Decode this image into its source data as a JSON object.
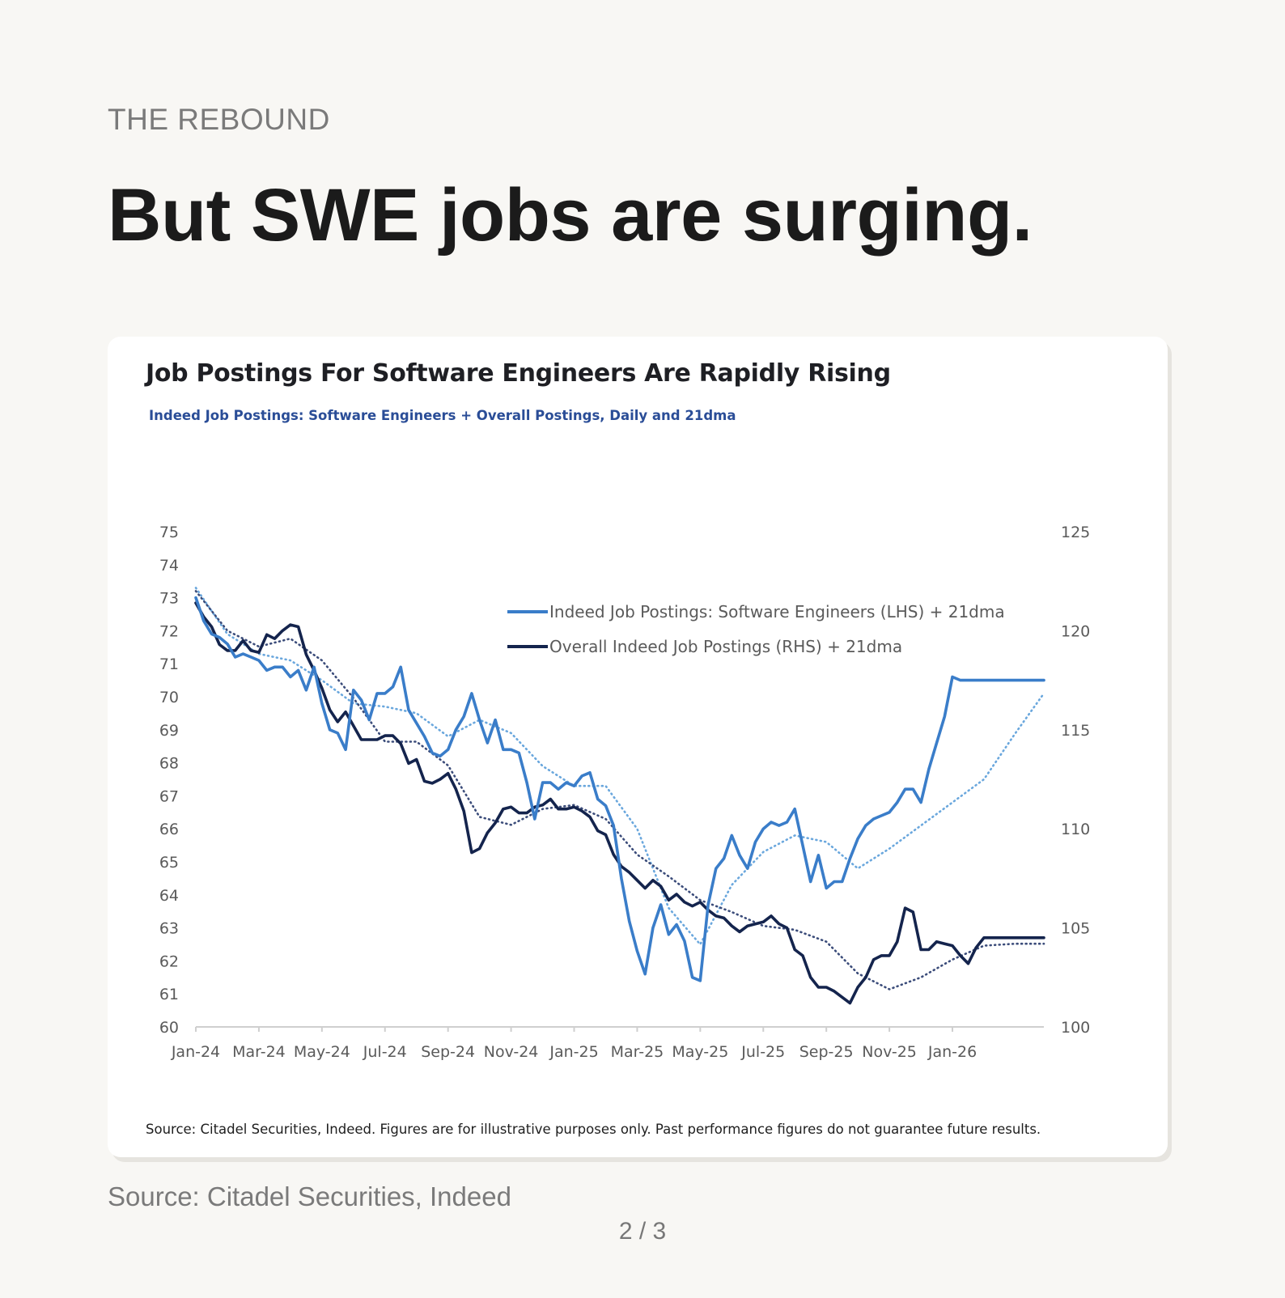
{
  "section_label": "THE REBOUND",
  "headline": "But SWE jobs are surging.",
  "source_caption": "Source: Citadel Securities, Indeed",
  "pager": "2 / 3",
  "colors": {
    "swe": "#3a7dc9",
    "swe_ma": "#6aa7dd",
    "overall": "#14244d",
    "overall_ma": "#3b4c7a"
  },
  "chart_data": {
    "type": "line",
    "title": "Job Postings For Software Engineers Are Rapidly Rising",
    "subtitle": "Indeed Job Postings: Software Engineers + Overall Postings, Daily and 21dma",
    "note": "Source: Citadel Securities, Indeed. Figures are for illustrative purposes only. Past performance figures do not guarantee future results.",
    "x_tick_labels": [
      "Jan-24",
      "Mar-24",
      "May-24",
      "Jul-24",
      "Sep-24",
      "Nov-24",
      "Jan-25",
      "Mar-25",
      "May-25",
      "Jul-25",
      "Sep-25",
      "Nov-25",
      "Jan-26"
    ],
    "x_range_months": [
      0,
      26.9
    ],
    "y_left": {
      "min": 60,
      "max": 75,
      "ticks": [
        75,
        74,
        73,
        72,
        71,
        70,
        69,
        68,
        67,
        66,
        65,
        64,
        63,
        62,
        61,
        60
      ]
    },
    "y_right": {
      "min": 100,
      "max": 125,
      "ticks": [
        125,
        120,
        115,
        110,
        105,
        100
      ]
    },
    "legend": [
      "Indeed Job Postings: Software Engineers (LHS) + 21dma",
      "Overall Indeed Job Postings (RHS) + 21dma"
    ],
    "series": [
      {
        "name": "Indeed Job Postings: Software Engineers (LHS)",
        "axis": "left",
        "style": "solid",
        "color_key": "swe",
        "x": [
          0,
          0.25,
          0.5,
          0.75,
          1.0,
          1.25,
          1.5,
          1.75,
          2.0,
          2.25,
          2.5,
          2.75,
          3.0,
          3.25,
          3.5,
          3.75,
          4.0,
          4.25,
          4.5,
          4.75,
          5.0,
          5.25,
          5.5,
          5.75,
          6.0,
          6.25,
          6.5,
          6.75,
          7.0,
          7.25,
          7.5,
          7.75,
          8.0,
          8.25,
          8.5,
          8.75,
          9.0,
          9.25,
          9.5,
          9.75,
          10.0,
          10.25,
          10.5,
          10.75,
          11.0,
          11.25,
          11.5,
          11.75,
          12.0,
          12.25,
          12.5,
          12.75,
          13.0,
          13.25,
          13.5,
          13.75,
          14.0,
          14.25,
          14.5,
          14.75,
          15.0,
          15.25,
          15.5,
          15.75,
          16.0,
          16.25,
          16.5,
          16.75,
          17.0,
          17.25,
          17.5,
          17.75,
          18.0,
          18.25,
          18.5,
          18.75,
          19.0,
          19.25,
          19.5,
          19.75,
          20.0,
          20.25,
          20.5,
          20.75,
          21.0,
          21.25,
          21.5,
          21.75,
          22.0,
          22.25,
          22.5,
          22.75,
          23.0,
          23.25,
          23.5,
          23.75,
          24.0,
          24.25,
          24.5,
          24.75,
          25.0,
          25.25,
          25.5,
          25.75,
          26.0,
          26.25,
          26.5,
          26.9
        ],
        "values": [
          73.0,
          72.3,
          71.9,
          71.8,
          71.6,
          71.2,
          71.3,
          71.2,
          71.1,
          70.8,
          70.9,
          70.9,
          70.6,
          70.8,
          70.2,
          70.9,
          69.8,
          69.0,
          68.9,
          68.4,
          70.2,
          69.9,
          69.3,
          70.1,
          70.1,
          70.3,
          70.9,
          69.6,
          69.2,
          68.8,
          68.3,
          68.2,
          68.4,
          69.0,
          69.4,
          70.1,
          69.3,
          68.6,
          69.3,
          68.4,
          68.4,
          68.3,
          67.4,
          66.3,
          67.4,
          67.4,
          67.2,
          67.4,
          67.3,
          67.6,
          67.7,
          66.9,
          66.7,
          66.1,
          64.5,
          63.2,
          62.3,
          61.6,
          63.0,
          63.7,
          62.8,
          63.1,
          62.6,
          61.5,
          61.4,
          63.7,
          64.8,
          65.1,
          65.8,
          65.2,
          64.8,
          65.6,
          66.0,
          66.2,
          66.1,
          66.2,
          66.6,
          65.5,
          64.4,
          65.2,
          64.2,
          64.4,
          64.4,
          65.1,
          65.7,
          66.1,
          66.3,
          66.4,
          66.5,
          66.8,
          67.2,
          67.2,
          66.8,
          67.8,
          68.6,
          69.4,
          70.6,
          70.5,
          70.5,
          70.5,
          70.5,
          70.5,
          70.5,
          70.5,
          70.5,
          70.5,
          70.5,
          70.5
        ],
        "x_end": 26.9
      },
      {
        "name": "Indeed Job Postings: Software Engineers 21dma",
        "axis": "left",
        "style": "dotted",
        "color_key": "swe_ma",
        "x": [
          0,
          1,
          2,
          3,
          4,
          5,
          6,
          7,
          8,
          9,
          10,
          11,
          12,
          13,
          14,
          15,
          16,
          17,
          18,
          19,
          20,
          21,
          22,
          23,
          24,
          25,
          26,
          26.9
        ],
        "values": [
          73.3,
          71.9,
          71.3,
          71.1,
          70.5,
          69.8,
          69.7,
          69.5,
          68.8,
          69.3,
          68.9,
          67.9,
          67.3,
          67.3,
          66.0,
          63.6,
          62.5,
          64.3,
          65.3,
          65.8,
          65.6,
          64.8,
          65.4,
          66.1,
          66.8,
          67.5,
          68.9,
          70.1
        ]
      },
      {
        "name": "Overall Indeed Job Postings (RHS)",
        "axis": "right",
        "style": "solid",
        "color_key": "overall",
        "x": [
          0,
          0.25,
          0.5,
          0.75,
          1.0,
          1.25,
          1.5,
          1.75,
          2.0,
          2.25,
          2.5,
          2.75,
          3.0,
          3.25,
          3.5,
          3.75,
          4.0,
          4.25,
          4.5,
          4.75,
          5.0,
          5.25,
          5.5,
          5.75,
          6.0,
          6.25,
          6.5,
          6.75,
          7.0,
          7.25,
          7.5,
          7.75,
          8.0,
          8.25,
          8.5,
          8.75,
          9.0,
          9.25,
          9.5,
          9.75,
          10.0,
          10.25,
          10.5,
          10.75,
          11.0,
          11.25,
          11.5,
          11.75,
          12.0,
          12.25,
          12.5,
          12.75,
          13.0,
          13.25,
          13.5,
          13.75,
          14.0,
          14.25,
          14.5,
          14.75,
          15.0,
          15.25,
          15.5,
          15.75,
          16.0,
          16.25,
          16.5,
          16.75,
          17.0,
          17.25,
          17.5,
          17.75,
          18.0,
          18.25,
          18.5,
          18.75,
          19.0,
          19.25,
          19.5,
          19.75,
          20.0,
          20.25,
          20.5,
          20.75,
          21.0,
          21.25,
          21.5,
          21.75,
          22.0,
          22.25,
          22.5,
          22.75,
          23.0,
          23.25,
          23.5,
          23.75,
          24.0,
          24.25,
          24.5,
          24.75,
          25.0,
          25.25,
          25.5,
          25.75,
          26.0,
          26.25,
          26.5,
          26.9
        ],
        "values": [
          121.4,
          120.7,
          120.2,
          119.3,
          119.0,
          119.0,
          119.5,
          119.0,
          118.9,
          119.8,
          119.6,
          120.0,
          120.3,
          120.2,
          118.8,
          118.0,
          117.1,
          116.0,
          115.4,
          115.9,
          115.2,
          114.5,
          114.5,
          114.5,
          114.7,
          114.7,
          114.3,
          113.3,
          113.5,
          112.4,
          112.3,
          112.5,
          112.8,
          112.0,
          110.9,
          108.8,
          109.0,
          109.8,
          110.3,
          111.0,
          111.1,
          110.8,
          110.8,
          111.1,
          111.2,
          111.5,
          111.0,
          111.0,
          111.1,
          110.9,
          110.6,
          109.9,
          109.7,
          108.7,
          108.1,
          107.8,
          107.4,
          107.0,
          107.4,
          107.1,
          106.4,
          106.7,
          106.3,
          106.1,
          106.3,
          105.9,
          105.6,
          105.5,
          105.1,
          104.8,
          105.1,
          105.2,
          105.3,
          105.6,
          105.2,
          105.0,
          103.9,
          103.6,
          102.5,
          102.0,
          102.0,
          101.8,
          101.5,
          101.2,
          102.0,
          102.5,
          103.4,
          103.6,
          103.6,
          104.3,
          106.0,
          105.8,
          103.9,
          103.9,
          104.3,
          104.2,
          104.1,
          103.6,
          103.2,
          104.0,
          104.5,
          104.5,
          104.5,
          104.5,
          104.5,
          104.5,
          104.5,
          104.5
        ]
      },
      {
        "name": "Overall Indeed Job Postings 21dma",
        "axis": "right",
        "style": "dotted",
        "color_key": "overall_ma",
        "x": [
          0,
          1,
          2,
          3,
          4,
          5,
          6,
          7,
          8,
          9,
          10,
          11,
          12,
          13,
          14,
          15,
          16,
          17,
          18,
          19,
          20,
          21,
          22,
          23,
          24,
          25,
          26,
          26.9
        ],
        "values": [
          122.0,
          120.0,
          119.2,
          119.6,
          118.5,
          116.6,
          114.4,
          114.4,
          113.2,
          110.6,
          110.2,
          111.0,
          111.2,
          110.5,
          108.7,
          107.6,
          106.4,
          105.8,
          105.1,
          104.9,
          104.3,
          102.7,
          101.9,
          102.5,
          103.4,
          104.1,
          104.2,
          104.2
        ]
      }
    ]
  }
}
